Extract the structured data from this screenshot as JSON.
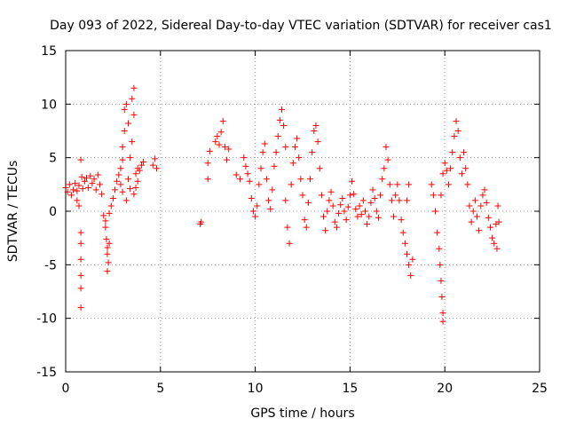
{
  "chart_data": {
    "type": "scatter",
    "title": "Day 093 of 2022, Sidereal Day-to-day VTEC variation (SDTVAR) for receiver cas1",
    "xlabel": "GPS time / hours",
    "ylabel": "SDTVAR / TECUs",
    "xlim": [
      0,
      25
    ],
    "ylim": [
      -15,
      15
    ],
    "x_ticks": [
      0,
      5,
      10,
      15,
      20,
      25
    ],
    "y_ticks": [
      -15,
      -10,
      -5,
      0,
      5,
      10,
      15
    ],
    "x_tick_labels": [
      "0",
      "5",
      "10",
      "15",
      "20",
      "25"
    ],
    "y_tick_labels": [
      "-15",
      "-10",
      "-5",
      "0",
      "5",
      "10",
      "15"
    ],
    "grid": true,
    "marker": "+",
    "color": "#ff0000",
    "series": [
      {
        "name": "SDTVAR",
        "points": [
          [
            0.0,
            2.2
          ],
          [
            0.1,
            1.8
          ],
          [
            0.2,
            2.5
          ],
          [
            0.3,
            1.5
          ],
          [
            0.4,
            2.0
          ],
          [
            0.5,
            2.6
          ],
          [
            0.6,
            1.9
          ],
          [
            0.7,
            2.4
          ],
          [
            0.8,
            4.8
          ],
          [
            0.85,
            3.2
          ],
          [
            0.9,
            2.1
          ],
          [
            1.0,
            2.8
          ],
          [
            1.1,
            3.1
          ],
          [
            1.2,
            2.2
          ],
          [
            1.3,
            3.3
          ],
          [
            1.4,
            2.6
          ],
          [
            1.5,
            3.0
          ],
          [
            1.6,
            2.0
          ],
          [
            1.7,
            3.4
          ],
          [
            1.8,
            2.5
          ],
          [
            1.9,
            1.6
          ],
          [
            0.6,
            1.0
          ],
          [
            0.7,
            0.5
          ],
          [
            0.8,
            -2.0
          ],
          [
            0.8,
            -3.0
          ],
          [
            0.8,
            -4.5
          ],
          [
            0.8,
            -6.0
          ],
          [
            0.8,
            -7.2
          ],
          [
            0.8,
            -9.0
          ],
          [
            2.0,
            -0.4
          ],
          [
            2.1,
            -0.9
          ],
          [
            2.1,
            -1.5
          ],
          [
            2.15,
            -2.6
          ],
          [
            2.2,
            -3.4
          ],
          [
            2.2,
            -4.0
          ],
          [
            2.25,
            -4.8
          ],
          [
            2.2,
            -5.6
          ],
          [
            2.3,
            -3.0
          ],
          [
            2.3,
            -0.2
          ],
          [
            2.4,
            0.5
          ],
          [
            2.5,
            1.2
          ],
          [
            2.6,
            2.0
          ],
          [
            2.7,
            2.8
          ],
          [
            2.8,
            3.4
          ],
          [
            2.9,
            4.0
          ],
          [
            3.0,
            4.8
          ],
          [
            3.0,
            6.0
          ],
          [
            3.1,
            7.5
          ],
          [
            3.1,
            9.5
          ],
          [
            3.2,
            10.0
          ],
          [
            3.3,
            8.2
          ],
          [
            3.3,
            3.0
          ],
          [
            3.4,
            2.1
          ],
          [
            3.5,
            10.5
          ],
          [
            3.6,
            11.5
          ],
          [
            3.6,
            9.0
          ],
          [
            3.5,
            6.5
          ],
          [
            3.4,
            5.0
          ],
          [
            3.7,
            3.5
          ],
          [
            3.8,
            2.8
          ],
          [
            3.9,
            3.8
          ],
          [
            4.0,
            4.3
          ],
          [
            4.1,
            4.6
          ],
          [
            3.2,
            1.0
          ],
          [
            3.0,
            1.8
          ],
          [
            2.9,
            2.5
          ],
          [
            3.6,
            1.6
          ],
          [
            3.7,
            2.2
          ],
          [
            3.8,
            4.0
          ],
          [
            4.6,
            4.3
          ],
          [
            4.7,
            4.9
          ],
          [
            4.8,
            4.0
          ],
          [
            7.1,
            -1.2
          ],
          [
            7.15,
            -1.0
          ],
          [
            7.5,
            3.0
          ],
          [
            7.5,
            4.5
          ],
          [
            7.6,
            5.6
          ],
          [
            7.9,
            6.5
          ],
          [
            8.0,
            7.0
          ],
          [
            8.1,
            6.2
          ],
          [
            8.2,
            7.4
          ],
          [
            8.3,
            8.4
          ],
          [
            8.4,
            6.0
          ],
          [
            8.5,
            4.8
          ],
          [
            8.6,
            5.8
          ],
          [
            9.0,
            3.4
          ],
          [
            9.2,
            3.0
          ],
          [
            9.4,
            5.0
          ],
          [
            9.5,
            4.2
          ],
          [
            9.6,
            3.5
          ],
          [
            9.7,
            2.8
          ],
          [
            9.8,
            1.2
          ],
          [
            9.9,
            0.0
          ],
          [
            10.0,
            -0.5
          ],
          [
            10.1,
            0.5
          ],
          [
            10.2,
            2.5
          ],
          [
            10.3,
            4.0
          ],
          [
            10.4,
            5.5
          ],
          [
            10.5,
            6.3
          ],
          [
            10.6,
            3.0
          ],
          [
            10.7,
            1.0
          ],
          [
            10.8,
            0.2
          ],
          [
            10.9,
            2.0
          ],
          [
            11.0,
            4.2
          ],
          [
            11.1,
            5.5
          ],
          [
            11.2,
            7.0
          ],
          [
            11.3,
            8.5
          ],
          [
            11.4,
            9.5
          ],
          [
            11.5,
            8.0
          ],
          [
            11.6,
            6.0
          ],
          [
            11.6,
            1.0
          ],
          [
            11.7,
            -1.5
          ],
          [
            11.8,
            -3.0
          ],
          [
            11.9,
            2.5
          ],
          [
            12.0,
            4.5
          ],
          [
            12.1,
            6.0
          ],
          [
            12.2,
            6.8
          ],
          [
            12.3,
            5.0
          ],
          [
            12.4,
            3.0
          ],
          [
            12.5,
            1.5
          ],
          [
            12.6,
            -0.8
          ],
          [
            12.7,
            -1.5
          ],
          [
            12.8,
            0.8
          ],
          [
            12.9,
            3.0
          ],
          [
            13.0,
            5.5
          ],
          [
            13.1,
            7.5
          ],
          [
            13.2,
            8.0
          ],
          [
            13.3,
            6.5
          ],
          [
            13.4,
            4.0
          ],
          [
            13.5,
            1.5
          ],
          [
            13.6,
            -0.5
          ],
          [
            13.7,
            -1.8
          ],
          [
            13.8,
            0.0
          ],
          [
            13.9,
            1.0
          ],
          [
            14.0,
            1.8
          ],
          [
            14.1,
            0.5
          ],
          [
            14.2,
            -1.0
          ],
          [
            14.3,
            -1.5
          ],
          [
            14.4,
            -0.2
          ],
          [
            14.5,
            0.6
          ],
          [
            14.6,
            1.2
          ],
          [
            14.7,
            0.0
          ],
          [
            14.8,
            -0.8
          ],
          [
            14.9,
            0.4
          ],
          [
            15.0,
            1.5
          ],
          [
            15.1,
            2.8
          ],
          [
            15.2,
            1.6
          ],
          [
            15.3,
            0.2
          ],
          [
            15.4,
            -0.5
          ],
          [
            15.5,
            0.5
          ],
          [
            15.6,
            -0.3
          ],
          [
            15.7,
            1.0
          ],
          [
            15.8,
            0.0
          ],
          [
            15.9,
            -1.2
          ],
          [
            16.0,
            -0.5
          ],
          [
            16.1,
            0.8
          ],
          [
            16.2,
            2.0
          ],
          [
            16.3,
            1.2
          ],
          [
            16.4,
            0.0
          ],
          [
            16.5,
            -0.6
          ],
          [
            16.6,
            1.5
          ],
          [
            16.7,
            3.0
          ],
          [
            16.8,
            4.0
          ],
          [
            16.9,
            6.0
          ],
          [
            17.0,
            4.8
          ],
          [
            17.1,
            2.5
          ],
          [
            17.2,
            1.0
          ],
          [
            17.3,
            -0.5
          ],
          [
            17.4,
            1.5
          ],
          [
            17.5,
            2.5
          ],
          [
            17.6,
            1.0
          ],
          [
            17.7,
            -0.8
          ],
          [
            17.8,
            -2.0
          ],
          [
            17.9,
            -3.0
          ],
          [
            18.0,
            -4.0
          ],
          [
            18.1,
            -5.0
          ],
          [
            18.2,
            -6.0
          ],
          [
            18.3,
            -4.5
          ],
          [
            18.0,
            1.0
          ],
          [
            18.1,
            2.5
          ],
          [
            19.3,
            2.5
          ],
          [
            19.4,
            1.5
          ],
          [
            19.5,
            0.0
          ],
          [
            19.6,
            -2.0
          ],
          [
            19.7,
            -3.5
          ],
          [
            19.75,
            -5.0
          ],
          [
            19.8,
            -6.5
          ],
          [
            19.85,
            -8.0
          ],
          [
            19.9,
            -9.5
          ],
          [
            19.9,
            -10.3
          ],
          [
            19.8,
            1.5
          ],
          [
            19.9,
            3.5
          ],
          [
            20.0,
            4.5
          ],
          [
            20.1,
            3.8
          ],
          [
            20.2,
            2.5
          ],
          [
            20.3,
            4.0
          ],
          [
            20.4,
            5.5
          ],
          [
            20.5,
            7.0
          ],
          [
            20.6,
            8.4
          ],
          [
            20.7,
            7.5
          ],
          [
            20.8,
            5.0
          ],
          [
            20.9,
            3.5
          ],
          [
            21.0,
            5.5
          ],
          [
            21.1,
            4.0
          ],
          [
            21.2,
            2.5
          ],
          [
            21.3,
            0.5
          ],
          [
            21.4,
            -1.0
          ],
          [
            21.5,
            0.0
          ],
          [
            21.6,
            1.0
          ],
          [
            21.7,
            -0.5
          ],
          [
            21.8,
            -1.8
          ],
          [
            21.9,
            0.5
          ],
          [
            22.0,
            1.5
          ],
          [
            22.1,
            2.0
          ],
          [
            22.2,
            0.8
          ],
          [
            22.3,
            -0.6
          ],
          [
            22.4,
            -1.5
          ],
          [
            22.5,
            -2.5
          ],
          [
            22.6,
            -3.0
          ],
          [
            22.7,
            -1.2
          ],
          [
            22.75,
            -3.5
          ],
          [
            22.8,
            0.5
          ],
          [
            22.85,
            -1.0
          ]
        ]
      }
    ]
  }
}
